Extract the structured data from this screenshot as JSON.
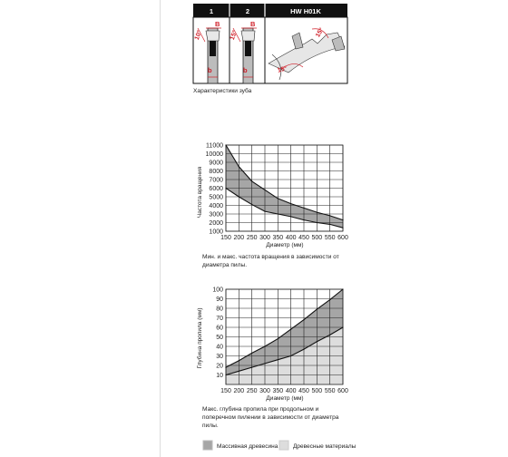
{
  "teeth": {
    "caption": "Характеристики зуба",
    "headers": [
      "1",
      "2",
      "HW H01K"
    ],
    "p1": {
      "angle": "10°",
      "top": "B",
      "bottom": "b"
    },
    "p2": {
      "angle": "15°",
      "top": "B",
      "bottom": "b"
    },
    "p3": {
      "angle_a": "15°",
      "angle_b": "15°"
    },
    "colors": {
      "header_bg": "#111111",
      "header_text": "#ffffff",
      "dim": "#d0202a"
    }
  },
  "rpm_caption": "Мин. и макс. частота вращения в зависимости от диаметра пилы.",
  "depth_caption": "Макс. глубина пропила при продольном и поперечном пилении в зависимости от диаметра пилы.",
  "legend": [
    {
      "label": "Массивная древесина",
      "color": "#a6a6a6"
    },
    {
      "label": "Древесные материалы",
      "color": "#dddddd"
    }
  ],
  "chart_data": [
    {
      "type": "area",
      "xlabel": "Диаметр (мм)",
      "ylabel": "Частота вращения",
      "x": [
        150,
        200,
        250,
        300,
        350,
        400,
        450,
        500,
        550,
        600
      ],
      "xlim": [
        150,
        600
      ],
      "ylim": [
        1000,
        11000
      ],
      "yticks": [
        1000,
        2000,
        3000,
        4000,
        5000,
        6000,
        7000,
        8000,
        9000,
        10000,
        11000
      ],
      "grid": true,
      "series": [
        {
          "values": [
            11000,
            8500,
            6800,
            5800,
            4800,
            4200,
            3700,
            3200,
            2800,
            2300
          ]
        },
        {
          "values": [
            6000,
            5000,
            4100,
            3300,
            3000,
            2700,
            2300,
            2000,
            1800,
            1400
          ]
        }
      ],
      "fill": "#a6a6a6"
    },
    {
      "type": "area",
      "xlabel": "Диаметр (мм)",
      "ylabel": "Глубина пропила (мм)",
      "x": [
        150,
        200,
        250,
        300,
        350,
        400,
        450,
        500,
        550,
        600
      ],
      "xlim": [
        150,
        600
      ],
      "ylim": [
        0,
        100
      ],
      "yticks": [
        10,
        20,
        30,
        40,
        50,
        60,
        70,
        80,
        90,
        100
      ],
      "grid": true,
      "series": [
        {
          "values": [
            18,
            25,
            33,
            40,
            48,
            58,
            68,
            79,
            89,
            100
          ]
        },
        {
          "values": [
            10,
            14,
            18,
            22,
            26,
            30,
            37,
            45,
            52,
            60
          ]
        }
      ],
      "fills": [
        "#a6a6a6",
        "#dddddd"
      ]
    }
  ]
}
